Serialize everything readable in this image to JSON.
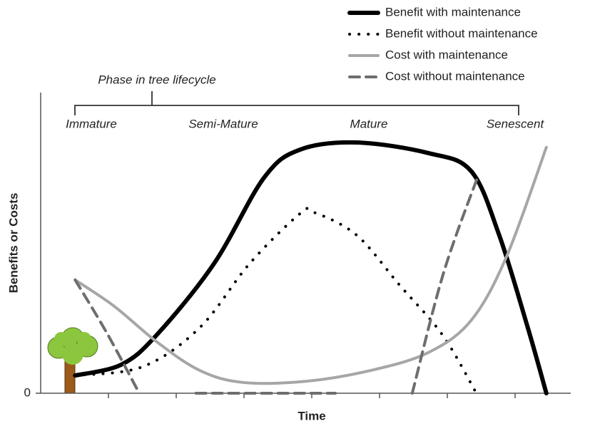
{
  "chart_data": {
    "type": "line",
    "title": "Phase in tree lifecycle",
    "phases": [
      "Immature",
      "Semi-Mature",
      "Mature",
      "Senescent"
    ],
    "x_label": "Time",
    "y_label": "Benefits or Costs",
    "xlim": [
      0,
      100
    ],
    "ylim": [
      0,
      100
    ],
    "yticks": [
      0
    ],
    "legend": "top-right",
    "series": [
      {
        "name": "Benefit with maintenance",
        "color": "#000000",
        "style": "solid",
        "width": 6,
        "x": [
          6.5,
          15.2,
          21.9,
          32.7,
          42.1,
          48.9,
          59.6,
          73.1,
          81.2,
          86.5,
          91.9,
          95.4
        ],
        "values": [
          5.9,
          9.5,
          19.4,
          43.1,
          71.6,
          81.0,
          83.4,
          79.9,
          73.9,
          52.6,
          21.8,
          0
        ]
      },
      {
        "name": "Benefit without maintenance",
        "color": "#000000",
        "style": "dotted",
        "width": 4,
        "x": [
          6.5,
          19.2,
          30.0,
          39.4,
          48.9,
          51.5,
          59.6,
          67.7,
          75.8,
          82.2
        ],
        "values": [
          5.9,
          8.8,
          21.8,
          43.1,
          59.7,
          60.2,
          52.6,
          36.0,
          19.4,
          0
        ]
      },
      {
        "name": "Cost with maintenance",
        "color": "#a6a6a6",
        "style": "solid",
        "width": 4,
        "x": [
          6.5,
          13.9,
          21.9,
          30.0,
          38.1,
          50.2,
          62.3,
          73.1,
          81.2,
          87.9,
          95.4
        ],
        "values": [
          37.7,
          28.9,
          17.1,
          7.6,
          3.6,
          4.0,
          7.6,
          13.5,
          24.2,
          45.5,
          81.8
        ]
      },
      {
        "name": "Cost without maintenance",
        "color": "#6e6e6e",
        "style": "dashed",
        "width": 4,
        "x": [
          6.5,
          12.5,
          18.6,
          25,
          29.3,
          55.6,
          62,
          70.1,
          76,
          82.6
        ],
        "values": [
          37.7,
          20,
          0,
          null,
          0,
          0,
          null,
          0,
          40,
          72.7
        ]
      }
    ]
  }
}
